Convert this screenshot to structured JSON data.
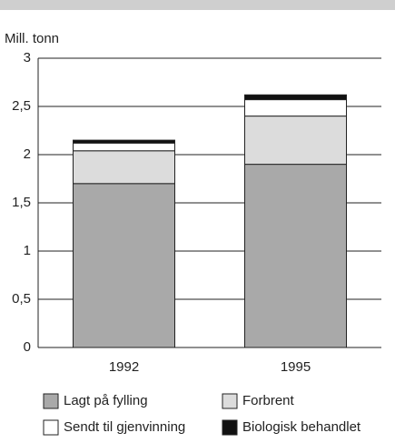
{
  "chart_data": {
    "type": "stacked_bar",
    "y_label": "Mill. tonn",
    "categories": [
      "1992",
      "1995"
    ],
    "series": [
      {
        "name": "Lagt på fylling",
        "color": "#a9a9a9",
        "values": [
          1.7,
          1.9
        ]
      },
      {
        "name": "Forbrent",
        "color": "#dcdcdc",
        "values": [
          0.34,
          0.5
        ]
      },
      {
        "name": "Sendt til gjenvinning",
        "color": "#ffffff",
        "values": [
          0.08,
          0.17
        ]
      },
      {
        "name": "Biologisk behandlet",
        "color": "#111111",
        "values": [
          0.03,
          0.05
        ]
      }
    ],
    "ylim": [
      0,
      3
    ],
    "yticks": [
      0,
      {
        "value": 0.5,
        "label": "0,5"
      },
      1,
      {
        "value": 1.5,
        "label": "1,5"
      },
      2,
      {
        "value": 2.5,
        "label": "2,5"
      },
      3
    ],
    "grid": true
  }
}
